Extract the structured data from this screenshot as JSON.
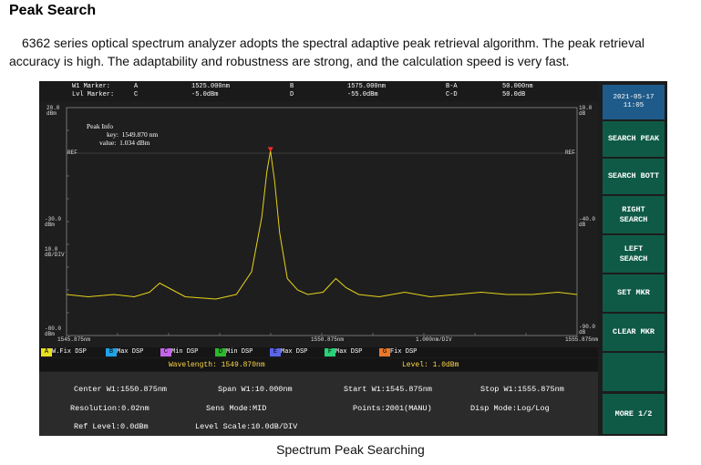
{
  "page": {
    "title": "Peak Search",
    "intro": "6362 series optical spectrum analyzer adopts the spectral adaptive peak retrieval algorithm. The peak retrieval accuracy is high. The adaptability and robustness are strong, and the calculation speed is very fast.",
    "caption": "Spectrum Peak Searching"
  },
  "top_bar": {
    "w1_label": "W1  Marker:",
    "lvl_label": "Lvl Marker:",
    "a_label": "A",
    "a_wl": "1525.000nm",
    "a_lvl": "-5.0dBm",
    "c_label": "C",
    "b_label": "B",
    "b_wl": "1575.000nm",
    "b_lvl": "-55.0dBm",
    "d_label": "D",
    "ba_label": "B-A",
    "ba_val": "50.000nm",
    "cd_label": "C-D",
    "cd_val": "50.0dB"
  },
  "plot": {
    "y_top_label": "20.0",
    "y_top_unit": "dBm",
    "y_mid_label": "-30.0",
    "y_mid_unit": "dBm",
    "y_div_label": "10.0",
    "y_div_unit": "dB/DIV",
    "y_bot_label": "-80.0",
    "y_bot_unit": "dBm",
    "r_top_label": "10.0",
    "r_top_unit": "dB",
    "r_mid_label": "-40.0",
    "r_mid_unit": "dB",
    "r_bot_label": "-90.0",
    "r_bot_unit": "dB",
    "ref_left": "REF",
    "ref_right": "REF",
    "x_start": "1545.875nm",
    "x_center": "1550.875nm",
    "x_div": "1.000nm/DIV",
    "x_stop": "1555.875nm",
    "peak_info_title": "Peak Info",
    "peak_key_label": "key:",
    "peak_key_value": "1549.870 nm",
    "peak_value_label": "value:",
    "peak_value_value": "1.034 dBm",
    "trace_color": "#e6d21a",
    "marker_color": "#ff2a2a"
  },
  "chart_data": {
    "type": "line",
    "xlabel": "",
    "ylabel": "",
    "xlim": [
      1545.875,
      1555.875
    ],
    "ylim": [
      -80,
      20
    ],
    "series": [
      {
        "x": [
          1545.875,
          1546.3,
          1546.8,
          1547.2,
          1547.5,
          1547.7,
          1547.95,
          1548.2,
          1548.5,
          1548.8,
          1549.2,
          1549.5,
          1549.7,
          1549.8,
          1549.87,
          1549.95,
          1550.05,
          1550.2,
          1550.4,
          1550.6,
          1550.9,
          1551.15,
          1551.35,
          1551.6,
          1552.0,
          1552.5,
          1553.0,
          1553.5,
          1554.0,
          1554.5,
          1555.0,
          1555.5,
          1555.875
        ],
        "y": [
          -62,
          -63,
          -62,
          -63,
          -61,
          -57,
          -60,
          -63,
          -63.5,
          -64,
          -62,
          -52,
          -28,
          -8,
          1,
          -12,
          -35,
          -55,
          -60,
          -62,
          -61,
          -55,
          -59,
          -62,
          -63,
          -61,
          -63,
          -62,
          -61,
          -62,
          -62,
          -61,
          -62
        ]
      }
    ],
    "peak": {
      "x": 1549.87,
      "y": 1.034
    }
  },
  "traces": [
    {
      "letter": "A",
      "text": "W.Fix DSP",
      "color": "#e8e020"
    },
    {
      "letter": "B",
      "text": "Max  DSP",
      "color": "#1fa3e6"
    },
    {
      "letter": "C",
      "text": "Min  DSP",
      "color": "#c266e8"
    },
    {
      "letter": "D",
      "text": "Min  DSP",
      "color": "#2bb82b"
    },
    {
      "letter": "E",
      "text": "Max  DSP",
      "color": "#5a64e8"
    },
    {
      "letter": "F",
      "text": "Max  DSP",
      "color": "#2bd07a"
    },
    {
      "letter": "G",
      "text": "Fix  DSP",
      "color": "#e8782a"
    }
  ],
  "readout": {
    "wavelength": "Wavelength: 1549.870nm",
    "level": "Level: 1.0dBm"
  },
  "params": {
    "center": "Center W1:1550.875nm",
    "span": "Span W1:10.000nm",
    "start": "Start W1:1545.875nm",
    "stop": "Stop W1:1555.875nm",
    "resolution": "Resolution:0.02nm",
    "sens": "Sens Mode:MID",
    "points": "Points:2001(MANU)",
    "disp": "Disp Mode:Log/Log",
    "ref_level": "Ref Level:0.0dBm",
    "level_scale": "Level Scale:10.0dB/DIV"
  },
  "side": {
    "date": "2021-05-17",
    "time": "11:05",
    "buttons": [
      "SEARCH PEAK",
      "SEARCH BOTT",
      "RIGHT\nSEARCH",
      "LEFT\nSEARCH",
      "SET MKR",
      "CLEAR MKR",
      "",
      "MORE 1/2"
    ]
  }
}
